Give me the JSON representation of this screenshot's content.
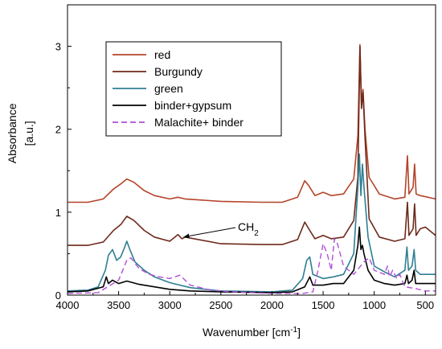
{
  "chart_data": {
    "type": "line",
    "title": "",
    "xlabel": "Wavenumber [cm",
    "xlabel_sup": "-1",
    "xlabel_end": "]",
    "ylabel": "Absorbance",
    "ylabel_unit": "[a.u.]",
    "xlim": [
      4000,
      400
    ],
    "ylim": [
      0,
      3.5
    ],
    "x_ticks": [
      4000,
      3500,
      3000,
      2500,
      2000,
      1500,
      1000,
      500
    ],
    "y_ticks": [
      0,
      1,
      2,
      3
    ],
    "grid": false,
    "legend_position": "top-left",
    "annotations": [
      {
        "text": "CH",
        "subscript": "2",
        "x": 2880,
        "y": 0.72
      }
    ],
    "series": [
      {
        "name": "red",
        "color": "#b5442a",
        "dash": false,
        "points": [
          [
            4000,
            1.12
          ],
          [
            3800,
            1.12
          ],
          [
            3650,
            1.16
          ],
          [
            3550,
            1.28
          ],
          [
            3480,
            1.34
          ],
          [
            3420,
            1.4
          ],
          [
            3350,
            1.36
          ],
          [
            3250,
            1.26
          ],
          [
            3150,
            1.2
          ],
          [
            3000,
            1.16
          ],
          [
            2920,
            1.18
          ],
          [
            2850,
            1.16
          ],
          [
            2500,
            1.13
          ],
          [
            2100,
            1.12
          ],
          [
            1900,
            1.12
          ],
          [
            1750,
            1.18
          ],
          [
            1680,
            1.38
          ],
          [
            1640,
            1.32
          ],
          [
            1580,
            1.2
          ],
          [
            1500,
            1.24
          ],
          [
            1420,
            1.2
          ],
          [
            1300,
            1.22
          ],
          [
            1200,
            1.4
          ],
          [
            1160,
            1.92
          ],
          [
            1140,
            3.02
          ],
          [
            1125,
            2.3
          ],
          [
            1110,
            2.48
          ],
          [
            1090,
            2.0
          ],
          [
            1050,
            1.42
          ],
          [
            950,
            1.22
          ],
          [
            800,
            1.16
          ],
          [
            700,
            1.18
          ],
          [
            675,
            1.68
          ],
          [
            660,
            1.22
          ],
          [
            620,
            1.3
          ],
          [
            605,
            1.58
          ],
          [
            590,
            1.22
          ],
          [
            550,
            1.2
          ],
          [
            400,
            1.16
          ]
        ]
      },
      {
        "name": "Burgundy",
        "color": "#6e2a1c",
        "dash": false,
        "points": [
          [
            4000,
            0.6
          ],
          [
            3800,
            0.6
          ],
          [
            3650,
            0.64
          ],
          [
            3550,
            0.78
          ],
          [
            3480,
            0.85
          ],
          [
            3420,
            0.95
          ],
          [
            3350,
            0.9
          ],
          [
            3250,
            0.78
          ],
          [
            3150,
            0.7
          ],
          [
            3000,
            0.65
          ],
          [
            2920,
            0.73
          ],
          [
            2880,
            0.68
          ],
          [
            2850,
            0.7
          ],
          [
            2500,
            0.62
          ],
          [
            2100,
            0.61
          ],
          [
            1900,
            0.61
          ],
          [
            1750,
            0.67
          ],
          [
            1680,
            0.88
          ],
          [
            1640,
            0.8
          ],
          [
            1580,
            0.68
          ],
          [
            1500,
            0.72
          ],
          [
            1420,
            0.68
          ],
          [
            1300,
            0.7
          ],
          [
            1200,
            0.9
          ],
          [
            1160,
            1.42
          ],
          [
            1140,
            3.0
          ],
          [
            1125,
            2.25
          ],
          [
            1110,
            2.45
          ],
          [
            1090,
            1.9
          ],
          [
            1050,
            0.92
          ],
          [
            950,
            0.7
          ],
          [
            800,
            0.65
          ],
          [
            700,
            0.68
          ],
          [
            675,
            1.12
          ],
          [
            660,
            0.72
          ],
          [
            620,
            0.8
          ],
          [
            605,
            1.1
          ],
          [
            590,
            0.72
          ],
          [
            550,
            0.8
          ],
          [
            500,
            0.82
          ],
          [
            400,
            0.72
          ]
        ]
      },
      {
        "name": "green",
        "color": "#2f7f93",
        "dash": false,
        "points": [
          [
            4000,
            0.05
          ],
          [
            3800,
            0.06
          ],
          [
            3700,
            0.1
          ],
          [
            3630,
            0.3
          ],
          [
            3600,
            0.48
          ],
          [
            3560,
            0.55
          ],
          [
            3520,
            0.42
          ],
          [
            3480,
            0.46
          ],
          [
            3440,
            0.58
          ],
          [
            3420,
            0.65
          ],
          [
            3390,
            0.55
          ],
          [
            3340,
            0.4
          ],
          [
            3250,
            0.3
          ],
          [
            3150,
            0.22
          ],
          [
            3000,
            0.15
          ],
          [
            2800,
            0.09
          ],
          [
            2500,
            0.05
          ],
          [
            2000,
            0.04
          ],
          [
            1800,
            0.06
          ],
          [
            1700,
            0.2
          ],
          [
            1660,
            0.42
          ],
          [
            1630,
            0.46
          ],
          [
            1600,
            0.25
          ],
          [
            1500,
            0.2
          ],
          [
            1400,
            0.22
          ],
          [
            1300,
            0.25
          ],
          [
            1200,
            0.5
          ],
          [
            1160,
            1.3
          ],
          [
            1145,
            1.7
          ],
          [
            1130,
            1.2
          ],
          [
            1115,
            1.58
          ],
          [
            1100,
            1.3
          ],
          [
            1060,
            0.7
          ],
          [
            1000,
            0.35
          ],
          [
            900,
            0.28
          ],
          [
            800,
            0.22
          ],
          [
            700,
            0.3
          ],
          [
            680,
            0.58
          ],
          [
            665,
            0.3
          ],
          [
            630,
            0.35
          ],
          [
            610,
            0.55
          ],
          [
            595,
            0.3
          ],
          [
            550,
            0.25
          ],
          [
            400,
            0.25
          ]
        ]
      },
      {
        "name": "binder+gypsum",
        "color": "#000000",
        "dash": false,
        "points": [
          [
            4000,
            0.04
          ],
          [
            3800,
            0.05
          ],
          [
            3650,
            0.1
          ],
          [
            3620,
            0.22
          ],
          [
            3600,
            0.14
          ],
          [
            3560,
            0.18
          ],
          [
            3500,
            0.14
          ],
          [
            3420,
            0.17
          ],
          [
            3300,
            0.13
          ],
          [
            3150,
            0.1
          ],
          [
            3000,
            0.07
          ],
          [
            2800,
            0.05
          ],
          [
            2500,
            0.04
          ],
          [
            2000,
            0.03
          ],
          [
            1800,
            0.04
          ],
          [
            1680,
            0.1
          ],
          [
            1630,
            0.22
          ],
          [
            1600,
            0.12
          ],
          [
            1500,
            0.12
          ],
          [
            1400,
            0.14
          ],
          [
            1300,
            0.14
          ],
          [
            1200,
            0.3
          ],
          [
            1160,
            0.6
          ],
          [
            1145,
            0.82
          ],
          [
            1130,
            0.55
          ],
          [
            1115,
            0.6
          ],
          [
            1100,
            0.5
          ],
          [
            1060,
            0.3
          ],
          [
            1000,
            0.18
          ],
          [
            900,
            0.14
          ],
          [
            800,
            0.12
          ],
          [
            700,
            0.14
          ],
          [
            680,
            0.24
          ],
          [
            665,
            0.14
          ],
          [
            630,
            0.18
          ],
          [
            610,
            0.3
          ],
          [
            595,
            0.14
          ],
          [
            550,
            0.14
          ],
          [
            400,
            0.14
          ]
        ]
      },
      {
        "name": "Malachite+ binder",
        "color": "#b04fd8",
        "dash": true,
        "points": [
          [
            4000,
            0.02
          ],
          [
            3700,
            0.03
          ],
          [
            3500,
            0.18
          ],
          [
            3420,
            0.42
          ],
          [
            3380,
            0.45
          ],
          [
            3300,
            0.32
          ],
          [
            3200,
            0.25
          ],
          [
            3100,
            0.22
          ],
          [
            3000,
            0.2
          ],
          [
            2900,
            0.24
          ],
          [
            2800,
            0.12
          ],
          [
            2600,
            0.06
          ],
          [
            2400,
            0.04
          ],
          [
            2000,
            0.02
          ],
          [
            1700,
            0.02
          ],
          [
            1600,
            0.04
          ],
          [
            1550,
            0.3
          ],
          [
            1500,
            0.62
          ],
          [
            1460,
            0.5
          ],
          [
            1420,
            0.3
          ],
          [
            1390,
            0.68
          ],
          [
            1360,
            0.62
          ],
          [
            1300,
            0.35
          ],
          [
            1200,
            0.25
          ],
          [
            1100,
            0.4
          ],
          [
            1050,
            0.45
          ],
          [
            1000,
            0.3
          ],
          [
            900,
            0.25
          ],
          [
            870,
            0.35
          ],
          [
            850,
            0.22
          ],
          [
            820,
            0.3
          ],
          [
            780,
            0.2
          ],
          [
            750,
            0.25
          ],
          [
            700,
            0.1
          ],
          [
            600,
            0.08
          ],
          [
            500,
            0.05
          ],
          [
            400,
            0.05
          ]
        ]
      }
    ]
  }
}
